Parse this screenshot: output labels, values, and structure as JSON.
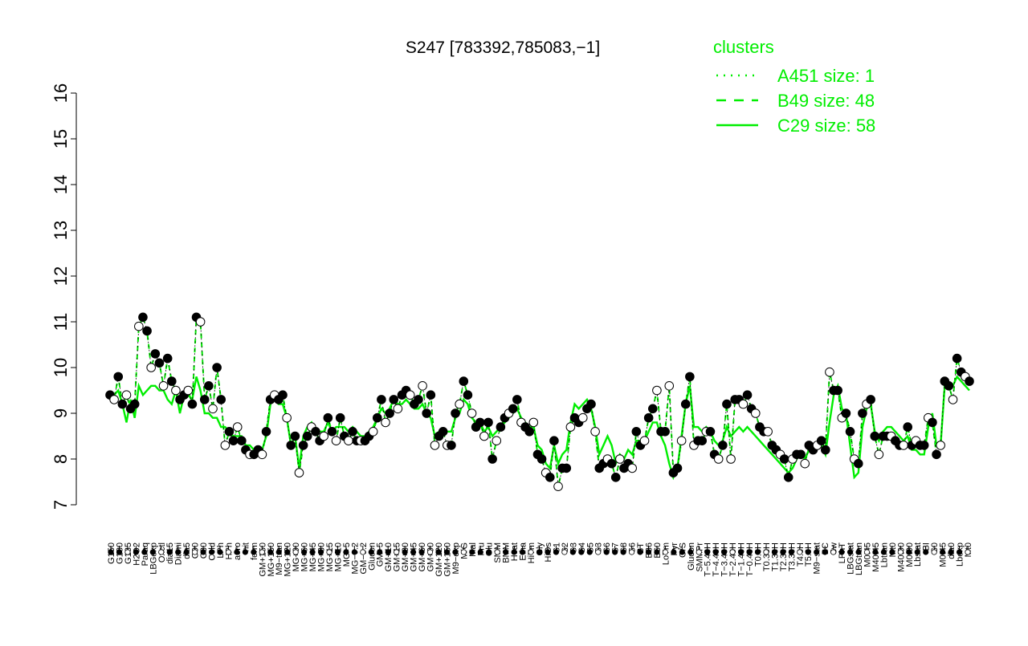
{
  "chart_data": {
    "type": "line",
    "title": "S247 [783392,785083,−1]",
    "xlabel": "",
    "ylabel": "",
    "ylim": [
      7,
      16
    ],
    "yticks": [
      7,
      8,
      9,
      10,
      11,
      12,
      13,
      14,
      15,
      16
    ],
    "grid": false,
    "legend": {
      "title": "clusters",
      "placement": "top-right",
      "color": "#00ee00",
      "entries": [
        {
          "label": "A451 size: 1",
          "style": "dotted"
        },
        {
          "label": "B49 size: 48",
          "style": "dashed"
        },
        {
          "label": "C29 size: 58",
          "style": "solid"
        }
      ]
    },
    "line_color": "#00ee00",
    "x_tick_labels": [
      "G150",
      "G180",
      "G135",
      "H2O2",
      "Paraq",
      "LBGexp",
      "Oxctl",
      "dia15",
      "Diami",
      "dia5",
      "C90",
      "C30",
      "Cold",
      "LPh",
      "HPh",
      "aero",
      "nit",
      "ferm",
      "GM+150",
      "MG+150",
      "M9−tran",
      "MG+120",
      "MG+90",
      "MG+60",
      "MG+45",
      "MG+30",
      "MG+15",
      "MG+10",
      "MG+5",
      "MG−0.2",
      "GM−0.2",
      "Glucon",
      "GM+5",
      "GM+10",
      "GM+15",
      "GM+30",
      "GM+45",
      "GM+60",
      "GM+90",
      "GM+120",
      "GM+150",
      "M9−exp",
      "M/G",
      "Mal",
      "Fru",
      "Glu",
      "SMM",
      "BMM",
      "Heat",
      "Etha",
      "HiTm",
      "Gly",
      "HiOs",
      "S1",
      "S2",
      "S3",
      "S4",
      "S5",
      "S3",
      "S6",
      "S7",
      "S8",
      "S6",
      "BT",
      "B36",
      "B60",
      "LoTm",
      "Pyr",
      "G/S",
      "Glucon",
      "SMMPr",
      "T−5.40H",
      "T−4.40H",
      "T−3.40H",
      "T−2.40H",
      "T−1.40H",
      "T−0.40H",
      "T0.0H",
      "T0.30H",
      "T1.30H",
      "T2.30H",
      "T3.30H",
      "T4.0H",
      "T5.0H",
      "M9−stat",
      "BC",
      "Sw",
      "LPhT",
      "LBGstat",
      "LBGtran",
      "M0t45",
      "M40t45",
      "Lbtran",
      "Mt0",
      "M40t90",
      "M0t90",
      "Lbstat",
      "BI",
      "S0",
      "M0t45",
      "dia0",
      "Lbexp",
      "Mt0"
    ],
    "series": [
      {
        "style": "dashed",
        "values": [
          9.4,
          9.3,
          9.8,
          9.2,
          9.4,
          9.1,
          9.2,
          10.9,
          11.1,
          10.8,
          10.0,
          10.3,
          10.1,
          9.6,
          10.2,
          9.7,
          9.5,
          9.3,
          9.4,
          9.5,
          9.2,
          11.1,
          11.0,
          9.3,
          9.6,
          9.1,
          10.0,
          9.3,
          8.3,
          8.6,
          8.4,
          8.7,
          8.4,
          8.2,
          8.1,
          8.1,
          8.2,
          8.1,
          8.6,
          9.3,
          9.4,
          9.3,
          9.4,
          8.9,
          8.3,
          8.5,
          7.7,
          8.3,
          8.5,
          8.7,
          8.6,
          8.4,
          8.5,
          8.9,
          8.6,
          8.4,
          8.9,
          8.5,
          8.4,
          8.6,
          8.4,
          8.4,
          8.4,
          8.5,
          8.6,
          8.9,
          9.3,
          8.8,
          9.0,
          9.3,
          9.1,
          9.4,
          9.5,
          9.4,
          9.2,
          9.3,
          9.6,
          9.0,
          9.4,
          8.3,
          8.5,
          8.6,
          8.3,
          8.3,
          9.0,
          9.2,
          9.7,
          9.4,
          9.0,
          8.7,
          8.8,
          8.5,
          8.8,
          8.0,
          8.4,
          8.7,
          8.9,
          9.0,
          9.1,
          9.3,
          8.8,
          8.7,
          8.6,
          8.8,
          8.1,
          8.0,
          7.7,
          7.6,
          8.4,
          7.4,
          7.8,
          7.8,
          8.7,
          8.9,
          8.8,
          8.9,
          9.1,
          9.2,
          8.6,
          7.8,
          7.9,
          8.0,
          7.9,
          7.6,
          8.0,
          7.8,
          7.9,
          7.8,
          8.6,
          8.3,
          8.4,
          8.9,
          9.1,
          9.5,
          8.6,
          8.6,
          9.6,
          7.7,
          7.8,
          8.4,
          9.2,
          9.8,
          8.3,
          8.4,
          8.4,
          8.6,
          8.6,
          8.1,
          8.0,
          8.3,
          9.2,
          8.0,
          9.3,
          9.3,
          9.2,
          9.4,
          9.1,
          9.0,
          8.7,
          8.6,
          8.6,
          8.3,
          8.2,
          8.1,
          8.0,
          7.6,
          8.0,
          8.1,
          8.1,
          7.9,
          8.3,
          8.2,
          8.3,
          8.4,
          8.2,
          9.9,
          9.5,
          9.5,
          8.9,
          9.0,
          8.6,
          8.0,
          7.9,
          9.0,
          9.2,
          9.3,
          8.5,
          8.1,
          8.5,
          8.5,
          8.5,
          8.4,
          8.3,
          8.3,
          8.7,
          8.3,
          8.4,
          8.3,
          8.3,
          8.9,
          8.8,
          8.1,
          8.3,
          9.7,
          9.6,
          9.3,
          10.2,
          9.9,
          9.8,
          9.7
        ]
      },
      {
        "style": "solid",
        "values": [
          9.4,
          9.4,
          9.5,
          9.2,
          8.8,
          9.3,
          8.9,
          9.6,
          9.4,
          9.5,
          9.6,
          9.6,
          9.5,
          9.5,
          9.3,
          9.2,
          9.5,
          9.0,
          9.4,
          9.4,
          9.3,
          9.8,
          9.5,
          9.0,
          9.0,
          8.9,
          8.9,
          8.7,
          8.7,
          8.6,
          8.5,
          8.5,
          8.5,
          8.3,
          8.3,
          8.2,
          8.2,
          8.2,
          8.5,
          9.2,
          9.3,
          9.2,
          9.2,
          8.9,
          8.3,
          8.5,
          7.8,
          8.5,
          8.7,
          8.8,
          8.6,
          8.6,
          8.6,
          8.8,
          8.6,
          8.7,
          8.7,
          8.7,
          8.6,
          8.7,
          8.6,
          8.5,
          8.5,
          8.6,
          8.7,
          8.9,
          9.1,
          9.0,
          9.1,
          9.3,
          9.2,
          9.2,
          9.3,
          9.2,
          9.1,
          9.1,
          9.2,
          9.0,
          8.9,
          8.5,
          8.6,
          8.6,
          8.6,
          8.6,
          8.9,
          9.0,
          9.3,
          9.2,
          8.9,
          8.8,
          8.8,
          8.6,
          8.7,
          8.5,
          8.6,
          8.7,
          8.8,
          8.9,
          9.0,
          9.1,
          8.9,
          8.8,
          8.7,
          8.7,
          8.3,
          8.2,
          7.9,
          7.8,
          8.3,
          7.9,
          8.1,
          8.2,
          8.8,
          9.2,
          9.1,
          9.2,
          9.3,
          9.1,
          8.7,
          8.1,
          8.3,
          8.5,
          8.3,
          7.9,
          8.1,
          8.0,
          8.2,
          8.1,
          8.4,
          8.4,
          8.4,
          8.6,
          8.8,
          8.8,
          8.5,
          8.3,
          7.9,
          7.6,
          7.8,
          8.5,
          9.2,
          9.6,
          8.7,
          8.7,
          8.6,
          8.7,
          8.6,
          8.4,
          8.3,
          8.4,
          8.7,
          8.5,
          8.6,
          8.7,
          8.6,
          8.7,
          8.6,
          8.5,
          8.4,
          8.3,
          8.2,
          8.1,
          8.0,
          7.9,
          7.8,
          7.7,
          7.8,
          8.0,
          8.1,
          8.0,
          8.2,
          8.2,
          8.3,
          8.3,
          8.1,
          8.8,
          9.4,
          9.6,
          9.1,
          9.0,
          8.3,
          7.6,
          7.7,
          8.7,
          9.1,
          9.2,
          8.6,
          8.4,
          8.6,
          8.7,
          8.7,
          8.6,
          8.5,
          8.4,
          8.5,
          8.2,
          8.2,
          8.1,
          8.1,
          8.7,
          9.0,
          8.3,
          8.3,
          9.6,
          9.6,
          9.6,
          9.8,
          9.7,
          9.6,
          9.5
        ]
      }
    ]
  }
}
